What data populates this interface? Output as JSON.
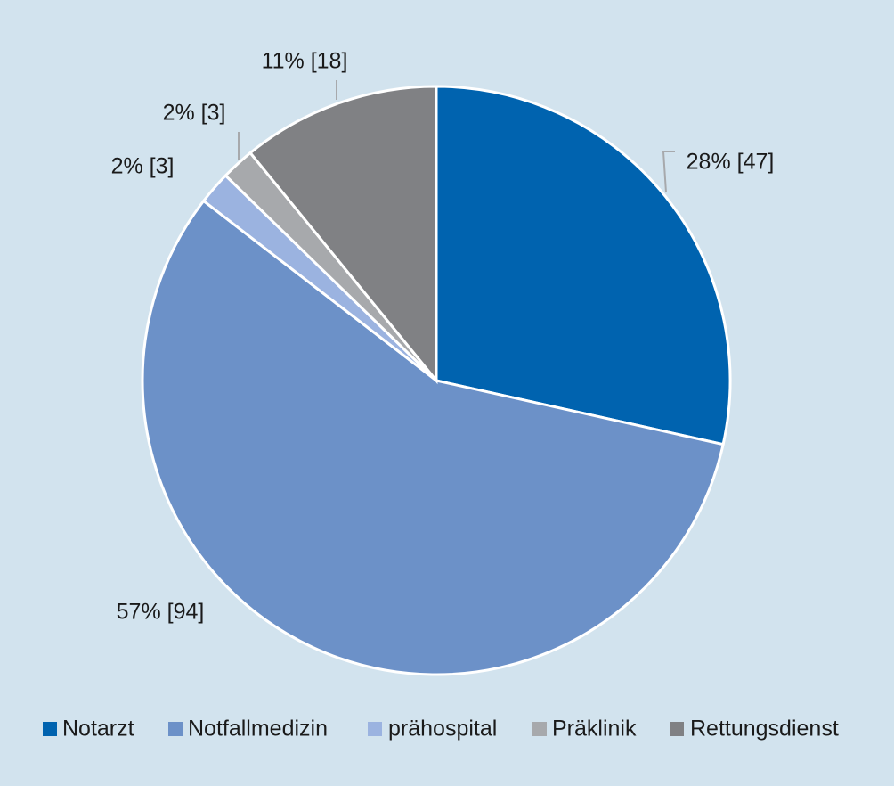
{
  "chart_data": {
    "type": "pie",
    "categories": [
      "Notarzt",
      "Notfallmedizin",
      "prähospital",
      "Präklinik",
      "Rettungsdienst"
    ],
    "values": [
      47,
      94,
      3,
      3,
      18
    ],
    "value_labels": [
      "28% [47]",
      "57% [94]",
      "2% [3]",
      "2% [3]",
      "11% [18]"
    ],
    "colors": [
      "#0063af",
      "#6c91c8",
      "#9bb3e0",
      "#a7a9ac",
      "#808184"
    ],
    "legend": "bottom"
  }
}
